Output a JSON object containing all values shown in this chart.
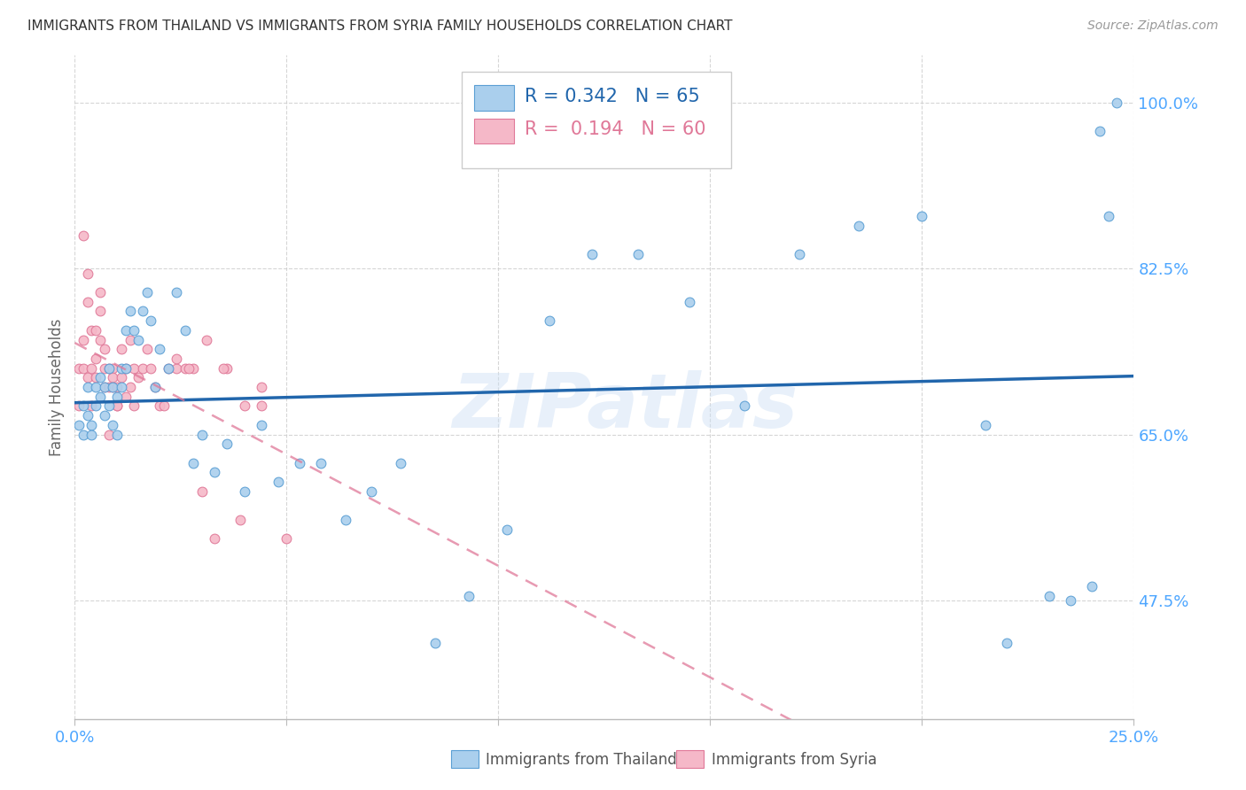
{
  "title": "IMMIGRANTS FROM THAILAND VS IMMIGRANTS FROM SYRIA FAMILY HOUSEHOLDS CORRELATION CHART",
  "source": "Source: ZipAtlas.com",
  "ylabel": "Family Households",
  "xlim": [
    0.0,
    0.25
  ],
  "ylim": [
    0.35,
    1.05
  ],
  "xticks": [
    0.0,
    0.05,
    0.1,
    0.15,
    0.2,
    0.25
  ],
  "xticklabels": [
    "0.0%",
    "",
    "",
    "",
    "",
    "25.0%"
  ],
  "yticks": [
    0.475,
    0.65,
    0.825,
    1.0
  ],
  "yticklabels": [
    "47.5%",
    "65.0%",
    "82.5%",
    "100.0%"
  ],
  "thailand_color": "#aacfed",
  "thailand_edge_color": "#5b9fd4",
  "syria_color": "#f5b8c8",
  "syria_edge_color": "#e07898",
  "trend_thailand_color": "#2166ac",
  "trend_syria_color": "#e07898",
  "legend_R_thailand": "0.342",
  "legend_N_thailand": "65",
  "legend_R_syria": "0.194",
  "legend_N_syria": "60",
  "watermark": "ZIPatlas",
  "thailand_x": [
    0.001,
    0.002,
    0.002,
    0.003,
    0.003,
    0.004,
    0.004,
    0.005,
    0.005,
    0.006,
    0.006,
    0.007,
    0.007,
    0.008,
    0.008,
    0.009,
    0.009,
    0.01,
    0.01,
    0.011,
    0.011,
    0.012,
    0.012,
    0.013,
    0.014,
    0.015,
    0.016,
    0.017,
    0.018,
    0.019,
    0.02,
    0.022,
    0.024,
    0.026,
    0.028,
    0.03,
    0.033,
    0.036,
    0.04,
    0.044,
    0.048,
    0.053,
    0.058,
    0.064,
    0.07,
    0.077,
    0.085,
    0.093,
    0.102,
    0.112,
    0.122,
    0.133,
    0.145,
    0.158,
    0.171,
    0.185,
    0.2,
    0.215,
    0.22,
    0.23,
    0.235,
    0.24,
    0.242,
    0.244,
    0.246
  ],
  "thailand_y": [
    0.66,
    0.65,
    0.68,
    0.67,
    0.7,
    0.66,
    0.65,
    0.68,
    0.7,
    0.71,
    0.69,
    0.67,
    0.7,
    0.68,
    0.72,
    0.7,
    0.66,
    0.65,
    0.69,
    0.72,
    0.7,
    0.76,
    0.72,
    0.78,
    0.76,
    0.75,
    0.78,
    0.8,
    0.77,
    0.7,
    0.74,
    0.72,
    0.8,
    0.76,
    0.62,
    0.65,
    0.61,
    0.64,
    0.59,
    0.66,
    0.6,
    0.62,
    0.62,
    0.56,
    0.59,
    0.62,
    0.43,
    0.48,
    0.55,
    0.77,
    0.84,
    0.84,
    0.79,
    0.68,
    0.84,
    0.87,
    0.88,
    0.66,
    0.43,
    0.48,
    0.475,
    0.49,
    0.97,
    0.88,
    1.0
  ],
  "syria_x": [
    0.001,
    0.001,
    0.002,
    0.002,
    0.002,
    0.003,
    0.003,
    0.003,
    0.004,
    0.004,
    0.004,
    0.005,
    0.005,
    0.005,
    0.006,
    0.006,
    0.006,
    0.007,
    0.007,
    0.007,
    0.008,
    0.008,
    0.008,
    0.009,
    0.009,
    0.009,
    0.01,
    0.01,
    0.01,
    0.011,
    0.011,
    0.012,
    0.012,
    0.013,
    0.013,
    0.014,
    0.014,
    0.015,
    0.016,
    0.017,
    0.018,
    0.019,
    0.02,
    0.021,
    0.022,
    0.024,
    0.026,
    0.028,
    0.03,
    0.033,
    0.036,
    0.04,
    0.044,
    0.024,
    0.027,
    0.031,
    0.035,
    0.039,
    0.044,
    0.05
  ],
  "syria_y": [
    0.68,
    0.72,
    0.86,
    0.72,
    0.75,
    0.79,
    0.82,
    0.71,
    0.68,
    0.72,
    0.76,
    0.73,
    0.76,
    0.71,
    0.8,
    0.75,
    0.78,
    0.72,
    0.74,
    0.7,
    0.72,
    0.65,
    0.7,
    0.7,
    0.72,
    0.71,
    0.7,
    0.68,
    0.68,
    0.74,
    0.71,
    0.69,
    0.72,
    0.75,
    0.7,
    0.72,
    0.68,
    0.71,
    0.72,
    0.74,
    0.72,
    0.7,
    0.68,
    0.68,
    0.72,
    0.72,
    0.72,
    0.72,
    0.59,
    0.54,
    0.72,
    0.68,
    0.7,
    0.73,
    0.72,
    0.75,
    0.72,
    0.56,
    0.68,
    0.54
  ],
  "background_color": "#ffffff",
  "grid_color": "#cccccc",
  "title_color": "#333333",
  "tick_color": "#4da6ff"
}
